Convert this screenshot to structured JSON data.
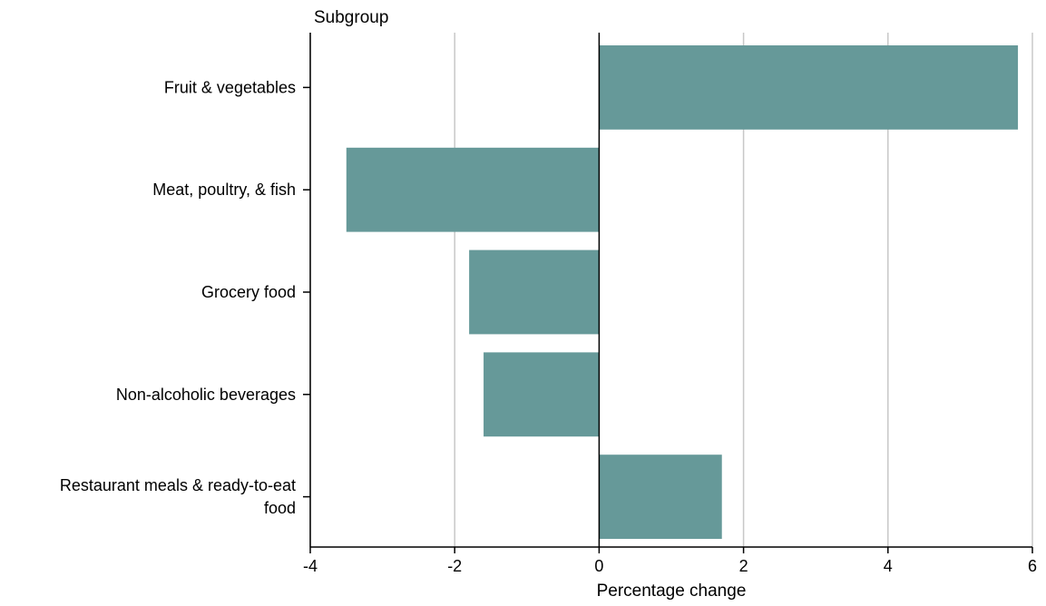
{
  "chart_data": {
    "type": "bar",
    "orientation": "horizontal",
    "title": "",
    "y_axis_title": "Subgroup",
    "xlabel": "Percentage change",
    "categories": [
      "Fruit & vegetables",
      "Meat, poultry, & fish",
      "Grocery food",
      "Non-alcoholic beverages",
      "Restaurant meals & ready-to-eat food"
    ],
    "category_label_lines": [
      [
        "Fruit & vegetables"
      ],
      [
        "Meat, poultry, & fish"
      ],
      [
        "Grocery food"
      ],
      [
        "Non-alcoholic beverages"
      ],
      [
        "Restaurant meals & ready-to-eat",
        "food"
      ]
    ],
    "values": [
      5.8,
      -3.5,
      -1.8,
      -1.6,
      1.7
    ],
    "xlim": [
      -4,
      6
    ],
    "xticks": [
      -4,
      -2,
      0,
      2,
      4,
      6
    ],
    "xtick_labels": [
      "-4",
      "-2",
      "0",
      "2",
      "4",
      "6"
    ],
    "grid": "vertical",
    "legend": "none",
    "colors": {
      "bar": "#669999",
      "grid": "#c8c8c8",
      "axis": "#000000",
      "zero_line": "#000000"
    }
  }
}
